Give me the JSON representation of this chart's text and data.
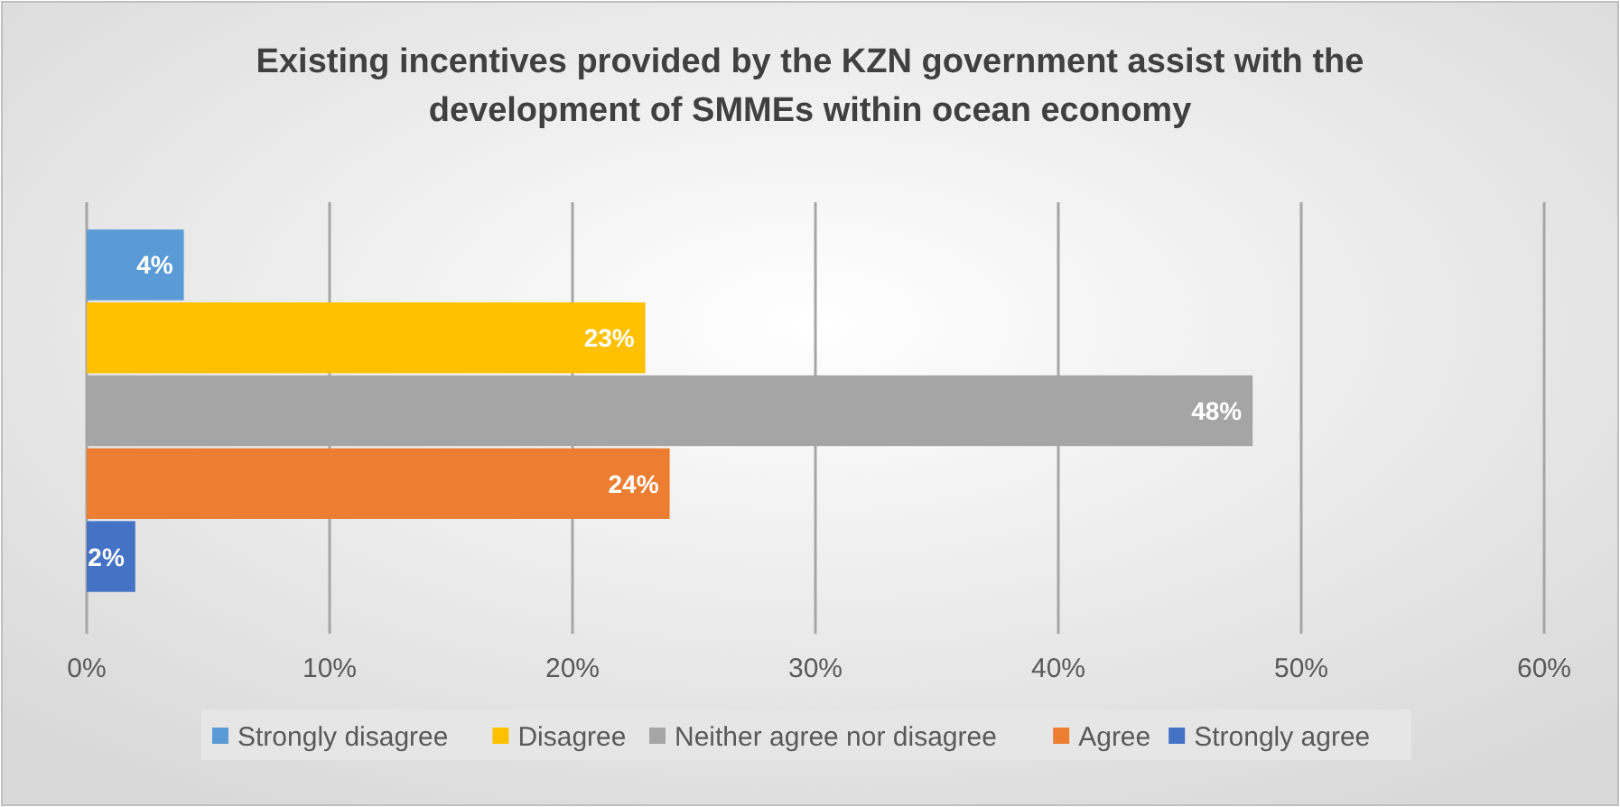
{
  "chart_data": {
    "type": "bar",
    "orientation": "horizontal",
    "title": "Existing incentives provided by the KZN government assist with the development of SMMEs within ocean economy",
    "categories": [
      null
    ],
    "series": [
      {
        "name": "Strongly disagree",
        "color": "#5b9bd5",
        "values": [
          4
        ],
        "value_labels": [
          "4%"
        ]
      },
      {
        "name": "Disagree",
        "color": "#ffc000",
        "values": [
          23
        ],
        "value_labels": [
          "23%"
        ]
      },
      {
        "name": "Neither agree nor disagree",
        "color": "#a5a5a5",
        "values": [
          48
        ],
        "value_labels": [
          "48%"
        ]
      },
      {
        "name": "Agree",
        "color": "#ed7d31",
        "values": [
          24
        ],
        "value_labels": [
          "24%"
        ]
      },
      {
        "name": "Strongly agree",
        "color": "#4472c4",
        "values": [
          2
        ],
        "value_labels": [
          "2%"
        ]
      }
    ],
    "xlim": [
      0,
      60
    ],
    "xticks": [
      {
        "value": 0,
        "label": "0%"
      },
      {
        "value": 10,
        "label": "10%"
      },
      {
        "value": 20,
        "label": "20%"
      },
      {
        "value": 30,
        "label": "30%"
      },
      {
        "value": 40,
        "label": "40%"
      },
      {
        "value": 50,
        "label": "50%"
      },
      {
        "value": 60,
        "label": "60%"
      }
    ],
    "grid": "x",
    "legend": "bottom",
    "tick_labels": "x"
  }
}
